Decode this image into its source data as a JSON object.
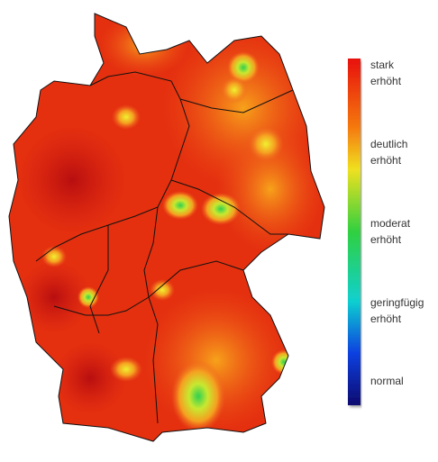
{
  "legend": {
    "items": [
      [
        "stark",
        "erhöht"
      ],
      [
        "deutlich",
        "erhöht"
      ],
      [
        "moderat",
        "erhöht"
      ],
      [
        "geringfügig",
        "erhöht"
      ],
      [
        "normal"
      ]
    ]
  }
}
